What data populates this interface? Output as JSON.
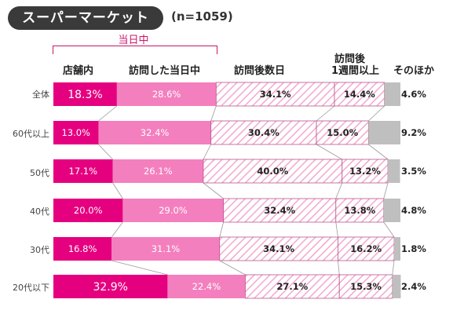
{
  "header": {
    "title": "スーパーマーケット",
    "sample_size": "(n=1059)",
    "bracket_label": "当日中"
  },
  "colors": {
    "in_store": "#e5007f",
    "same_day_visit": "#f47fbe",
    "later_visit_stripe": "#f3a8cf",
    "week_later_stripe": "#f3a8cf",
    "other": "#bfbfbf",
    "connector": "#9a9a9a"
  },
  "chart_data": {
    "type": "bar",
    "orientation": "horizontal",
    "stacked_percent": true,
    "categories": [
      "全体",
      "60代以上",
      "50代",
      "40代",
      "30代",
      "20代以下"
    ],
    "series": [
      {
        "name": "店舗内",
        "values": [
          18.3,
          13.0,
          17.1,
          20.0,
          16.8,
          32.9
        ],
        "labels": [
          "18.3%",
          "13.0%",
          "17.1%",
          "20.0%",
          "16.8%",
          "32.9%"
        ],
        "fill": "in_store"
      },
      {
        "name": "訪問した当日中",
        "values": [
          28.6,
          32.4,
          26.1,
          29.0,
          31.1,
          22.4
        ],
        "labels": [
          "28.6%",
          "32.4%",
          "26.1%",
          "29.0%",
          "31.1%",
          "22.4%"
        ],
        "fill": "same_day_visit"
      },
      {
        "name": "訪問後数日",
        "values": [
          34.1,
          30.4,
          40.0,
          32.4,
          34.1,
          27.1
        ],
        "labels": [
          "34.1%",
          "30.4%",
          "40.0%",
          "32.4%",
          "34.1%",
          "27.1%"
        ],
        "fill": "later_visit_stripe"
      },
      {
        "name": "訪問後 1週間以上",
        "values": [
          14.4,
          15.0,
          13.2,
          13.8,
          16.2,
          15.3
        ],
        "labels": [
          "14.4%",
          "15.0%",
          "13.2%",
          "13.8%",
          "16.2%",
          "15.3%"
        ],
        "fill": "week_later_stripe"
      },
      {
        "name": "そのほか",
        "values": [
          4.6,
          9.2,
          3.5,
          4.8,
          1.8,
          2.4
        ],
        "labels": [
          "4.6%",
          "9.2%",
          "3.5%",
          "4.8%",
          "1.8%",
          "2.4%"
        ],
        "fill": "other"
      }
    ],
    "column_headers": [
      "店舗内",
      "訪問した当日中",
      "訪問後数日",
      "訪問後",
      "1週間以上",
      "そのほか"
    ],
    "label_outside_series": "そのほか",
    "connectors": true
  }
}
